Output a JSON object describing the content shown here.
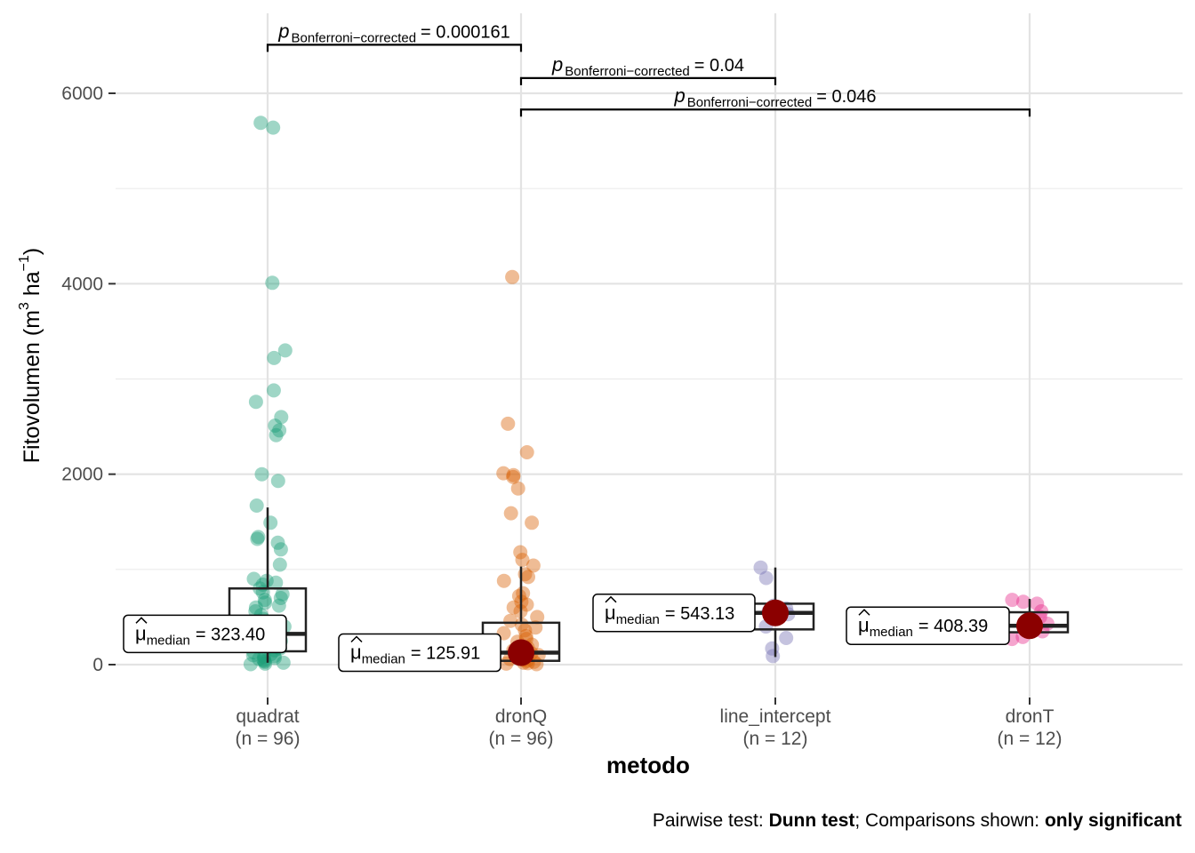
{
  "chart_data": {
    "type": "box",
    "xlabel": "metodo",
    "ylabel": "Fitovolumen (m3 ha-1)",
    "ylabel_parts": {
      "main": "Fitovolumen (m",
      "sup1": "3",
      "mid": " ha",
      "sup2": "−1",
      "end": ")"
    },
    "ylim": [
      -350,
      6700
    ],
    "yticks": [
      0,
      2000,
      4000,
      6000
    ],
    "ytick_labels": [
      "0",
      "2000",
      "4000",
      "6000"
    ],
    "grid": true,
    "categories": [
      "quadrat",
      "dronQ",
      "line_intercept",
      "dronT"
    ],
    "counts": [
      "(n = 96)",
      "(n = 96)",
      "(n = 12)",
      "(n = 12)"
    ],
    "colors": [
      "#1b9e77",
      "#d95f02",
      "#7570b3",
      "#e7298a"
    ],
    "median_color": "#8b0000",
    "boxes": [
      {
        "q1": 140,
        "median": 323.4,
        "q3": 800,
        "whisker_low": 20,
        "whisker_high": 1650
      },
      {
        "q1": 40,
        "median": 125.91,
        "q3": 440,
        "whisker_low": 10,
        "whisker_high": 1030
      },
      {
        "q1": 370,
        "median": 543.13,
        "q3": 640,
        "whisker_low": 80,
        "whisker_high": 1020
      },
      {
        "q1": 340,
        "median": 408.39,
        "q3": 550,
        "whisker_low": 280,
        "whisker_high": 690
      }
    ],
    "median_labels": [
      {
        "prefix": "μ",
        "sub": "median",
        "value": "= 323.40"
      },
      {
        "prefix": "μ",
        "sub": "median",
        "value": "= 125.91"
      },
      {
        "prefix": "μ",
        "sub": "median",
        "value": "= 543.13"
      },
      {
        "prefix": "μ",
        "sub": "median",
        "value": "= 408.39"
      }
    ],
    "points": [
      [
        5640,
        5690,
        4010,
        3300,
        3220,
        2880,
        2760,
        2600,
        2510,
        2460,
        2410,
        2000,
        1930,
        1670,
        1490,
        1340,
        1320,
        1280,
        1210,
        1050,
        900,
        880,
        860,
        840,
        800,
        760,
        740,
        700,
        680,
        650,
        620,
        600,
        560,
        520,
        480,
        440,
        400,
        360,
        330,
        300,
        280,
        250,
        230,
        210,
        190,
        170,
        150,
        130,
        110,
        100,
        90,
        80,
        70,
        60,
        50,
        40,
        30,
        20,
        10,
        5
      ],
      [
        4070,
        2530,
        2230,
        2010,
        1990,
        1970,
        1850,
        1590,
        1490,
        1180,
        1100,
        1040,
        950,
        920,
        880,
        750,
        720,
        660,
        630,
        600,
        560,
        500,
        460,
        420,
        390,
        360,
        330,
        300,
        270,
        240,
        210,
        180,
        150,
        120,
        100,
        80,
        60,
        50,
        40,
        30,
        20,
        15,
        10,
        5
      ],
      [
        1020,
        910,
        620,
        590,
        560,
        530,
        400,
        280,
        170,
        90
      ],
      [
        680,
        660,
        640,
        560,
        500,
        430,
        390,
        350,
        290,
        270
      ]
    ],
    "comparisons": [
      {
        "from": 0,
        "to": 1,
        "y": 6510,
        "label_p": "p",
        "label_sub": "Bonferroni−corrected",
        "label_value": "= 0.000161"
      },
      {
        "from": 1,
        "to": 2,
        "y": 6160,
        "label_p": "p",
        "label_sub": "Bonferroni−corrected",
        "label_value": "= 0.04"
      },
      {
        "from": 1,
        "to": 3,
        "y": 5830,
        "label_p": "p",
        "label_sub": "Bonferroni−corrected",
        "label_value": "= 0.046"
      }
    ]
  },
  "caption": {
    "prefix": "Pairwise test: ",
    "test": "Dunn test",
    "middle": "; Comparisons shown: ",
    "shown": "only significant"
  }
}
